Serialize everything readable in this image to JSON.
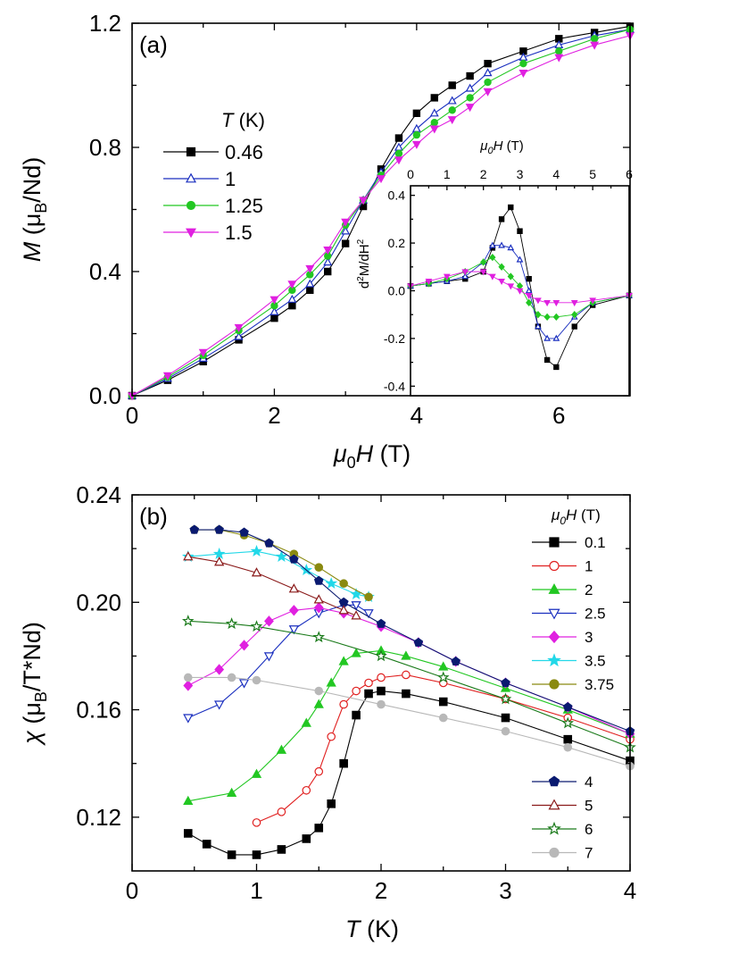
{
  "chart_data": [
    {
      "id": "a",
      "type": "line",
      "panel_label": "(a)",
      "xlabel": {
        "prefix": "μ",
        "sub": "0",
        "var": "H",
        "unit": " (T)"
      },
      "ylabel": {
        "var": "M",
        "unit_pre": " (μ",
        "sub": "B",
        "unit_post": "/Nd)"
      },
      "xlim": [
        0,
        7
      ],
      "ylim": [
        0,
        1.2
      ],
      "xticks": [
        "0",
        "2",
        "4",
        "6"
      ],
      "yticks": [
        "0.0",
        "0.4",
        "0.8",
        "1.2"
      ],
      "legend_title": {
        "var": "T",
        "unit": " (K)"
      },
      "series": [
        {
          "name": "0.46",
          "color": "#000000",
          "marker": "square",
          "x": [
            0,
            0.5,
            1,
            1.5,
            2,
            2.25,
            2.5,
            2.75,
            3,
            3.25,
            3.5,
            3.75,
            4,
            4.25,
            4.5,
            4.75,
            5,
            5.5,
            6,
            6.5,
            7
          ],
          "y": [
            0,
            0.05,
            0.11,
            0.18,
            0.25,
            0.29,
            0.34,
            0.4,
            0.49,
            0.61,
            0.73,
            0.83,
            0.91,
            0.96,
            1.0,
            1.03,
            1.07,
            1.11,
            1.15,
            1.17,
            1.19
          ]
        },
        {
          "name": "1",
          "color": "#1a2fbf",
          "marker": "triangle-open",
          "x": [
            0,
            0.5,
            1,
            1.5,
            2,
            2.25,
            2.5,
            2.75,
            3,
            3.25,
            3.5,
            3.75,
            4,
            4.25,
            4.5,
            4.75,
            5,
            5.5,
            6,
            6.5,
            7
          ],
          "y": [
            0,
            0.055,
            0.12,
            0.19,
            0.27,
            0.31,
            0.36,
            0.43,
            0.53,
            0.63,
            0.72,
            0.8,
            0.86,
            0.91,
            0.95,
            0.99,
            1.04,
            1.09,
            1.13,
            1.16,
            1.18
          ]
        },
        {
          "name": "1.25",
          "color": "#22c722",
          "marker": "circle",
          "x": [
            0,
            0.5,
            1,
            1.5,
            2,
            2.25,
            2.5,
            2.75,
            3,
            3.25,
            3.5,
            3.75,
            4,
            4.25,
            4.5,
            4.75,
            5,
            5.5,
            6,
            6.5,
            7
          ],
          "y": [
            0,
            0.06,
            0.13,
            0.21,
            0.29,
            0.34,
            0.39,
            0.45,
            0.55,
            0.63,
            0.71,
            0.78,
            0.84,
            0.88,
            0.92,
            0.96,
            1.01,
            1.07,
            1.11,
            1.15,
            1.18
          ]
        },
        {
          "name": "1.5",
          "color": "#e020e0",
          "marker": "triangle-down",
          "x": [
            0,
            0.5,
            1,
            1.5,
            2,
            2.25,
            2.5,
            2.75,
            3,
            3.25,
            3.5,
            3.75,
            4,
            4.25,
            4.5,
            4.75,
            5,
            5.5,
            6,
            6.5,
            7
          ],
          "y": [
            0,
            0.065,
            0.14,
            0.22,
            0.31,
            0.36,
            0.41,
            0.47,
            0.56,
            0.63,
            0.7,
            0.76,
            0.81,
            0.86,
            0.89,
            0.93,
            0.98,
            1.04,
            1.09,
            1.13,
            1.16
          ]
        }
      ]
    },
    {
      "id": "a-inset",
      "type": "line",
      "xlabel": {
        "prefix": "μ",
        "sub": "0",
        "var": "H",
        "unit": " (T)"
      },
      "ylabel": {
        "text": "d",
        "sup1": "2",
        "mid": "M/dH",
        "sup2": "2"
      },
      "xlim": [
        0,
        6
      ],
      "ylim": [
        -0.44,
        0.44
      ],
      "xticks": [
        "0",
        "1",
        "2",
        "3",
        "4",
        "5",
        "6"
      ],
      "yticks": [
        "-0.4",
        "-0.2",
        "0.0",
        "0.2",
        "0.4"
      ],
      "series": [
        {
          "name": "0.46",
          "color": "#000000",
          "marker": "square",
          "x": [
            0,
            0.5,
            1,
            1.5,
            2,
            2.25,
            2.5,
            2.75,
            3,
            3.25,
            3.5,
            3.75,
            4,
            4.5,
            5,
            6
          ],
          "y": [
            0.02,
            0.03,
            0.04,
            0.05,
            0.08,
            0.18,
            0.3,
            0.35,
            0.25,
            0.05,
            -0.15,
            -0.29,
            -0.32,
            -0.15,
            -0.06,
            -0.02
          ]
        },
        {
          "name": "1",
          "color": "#1a2fbf",
          "marker": "triangle-open",
          "x": [
            0,
            0.5,
            1,
            1.5,
            2,
            2.25,
            2.5,
            2.75,
            3,
            3.25,
            3.5,
            3.75,
            4,
            4.5,
            5,
            6
          ],
          "y": [
            0.02,
            0.03,
            0.04,
            0.06,
            0.12,
            0.19,
            0.19,
            0.18,
            0.13,
            0.0,
            -0.15,
            -0.2,
            -0.2,
            -0.11,
            -0.05,
            -0.02
          ]
        },
        {
          "name": "1.25",
          "color": "#22c722",
          "marker": "diamond",
          "x": [
            0,
            0.5,
            1,
            1.5,
            2,
            2.25,
            2.5,
            2.75,
            3,
            3.25,
            3.5,
            3.75,
            4,
            4.5,
            5,
            6
          ],
          "y": [
            0.02,
            0.03,
            0.05,
            0.08,
            0.12,
            0.14,
            0.1,
            0.06,
            0.02,
            -0.05,
            -0.1,
            -0.11,
            -0.11,
            -0.1,
            -0.05,
            -0.02
          ]
        },
        {
          "name": "1.5",
          "color": "#e020e0",
          "marker": "triangle-down",
          "x": [
            0,
            0.5,
            1,
            1.5,
            2,
            2.25,
            2.5,
            2.75,
            3,
            3.25,
            3.5,
            3.75,
            4,
            4.5,
            5,
            6
          ],
          "y": [
            0.02,
            0.04,
            0.06,
            0.08,
            0.08,
            0.06,
            0.04,
            0.02,
            0.0,
            -0.02,
            -0.04,
            -0.05,
            -0.05,
            -0.05,
            -0.04,
            -0.02
          ]
        }
      ]
    },
    {
      "id": "b",
      "type": "line",
      "panel_label": "(b)",
      "xlabel": {
        "var": "T",
        "unit": " (K)"
      },
      "ylabel": {
        "var": "χ",
        "unit_pre": " (μ",
        "sub": "B",
        "unit_post": "/T*Nd)"
      },
      "xlim": [
        0,
        4
      ],
      "ylim": [
        0.1,
        0.24
      ],
      "xticks": [
        "0",
        "1",
        "2",
        "3",
        "4"
      ],
      "yticks": [
        "0.12",
        "0.16",
        "0.20",
        "0.24"
      ],
      "legend_title": {
        "prefix": "μ",
        "sub": "0",
        "var": "H",
        "unit": " (T)"
      },
      "series": [
        {
          "name": "0.1",
          "color": "#000000",
          "marker": "square",
          "group": 1,
          "x": [
            0.45,
            0.6,
            0.8,
            1.0,
            1.2,
            1.4,
            1.5,
            1.6,
            1.7,
            1.8,
            1.9,
            2.0,
            2.2,
            2.5,
            3.0,
            3.5,
            4.0
          ],
          "y": [
            0.114,
            0.11,
            0.106,
            0.106,
            0.108,
            0.112,
            0.116,
            0.125,
            0.14,
            0.158,
            0.166,
            0.167,
            0.166,
            0.163,
            0.157,
            0.149,
            0.141
          ]
        },
        {
          "name": "1",
          "color": "#e02020",
          "marker": "circle-open",
          "group": 1,
          "x": [
            1.0,
            1.2,
            1.4,
            1.5,
            1.6,
            1.7,
            1.8,
            1.9,
            2.0,
            2.2,
            2.5,
            3.0,
            3.5,
            4.0
          ],
          "y": [
            0.118,
            0.122,
            0.13,
            0.137,
            0.15,
            0.162,
            0.167,
            0.17,
            0.172,
            0.173,
            0.17,
            0.164,
            0.157,
            0.149
          ]
        },
        {
          "name": "2",
          "color": "#22c722",
          "marker": "triangle",
          "group": 1,
          "x": [
            0.45,
            0.8,
            1.0,
            1.2,
            1.4,
            1.5,
            1.6,
            1.7,
            1.8,
            2.0,
            2.2,
            2.5,
            3.0,
            3.5,
            4.0
          ],
          "y": [
            0.126,
            0.129,
            0.136,
            0.145,
            0.155,
            0.162,
            0.17,
            0.178,
            0.181,
            0.182,
            0.18,
            0.176,
            0.168,
            0.16,
            0.151
          ]
        },
        {
          "name": "2.5",
          "color": "#1a2fbf",
          "marker": "triangle-down-open",
          "group": 1,
          "x": [
            0.45,
            0.7,
            0.9,
            1.1,
            1.3,
            1.5,
            1.7,
            1.8,
            1.9
          ],
          "y": [
            0.157,
            0.162,
            0.17,
            0.18,
            0.19,
            0.196,
            0.199,
            0.199,
            0.196
          ]
        },
        {
          "name": "3",
          "color": "#e020e0",
          "marker": "diamond",
          "group": 1,
          "x": [
            0.45,
            0.7,
            0.9,
            1.1,
            1.3,
            1.5,
            1.7,
            2.0,
            2.3,
            2.6,
            3.0,
            3.5,
            4.0
          ],
          "y": [
            0.169,
            0.175,
            0.184,
            0.193,
            0.197,
            0.198,
            0.196,
            0.191,
            0.185,
            0.178,
            0.17,
            0.161,
            0.151
          ]
        },
        {
          "name": "3.5",
          "color": "#22d8e8",
          "marker": "star",
          "group": 1,
          "x": [
            0.45,
            0.7,
            1.0,
            1.2,
            1.4,
            1.6,
            1.8,
            1.9
          ],
          "y": [
            0.217,
            0.218,
            0.219,
            0.217,
            0.212,
            0.207,
            0.203,
            0.202
          ]
        },
        {
          "name": "3.75",
          "color": "#8a8a10",
          "marker": "circle",
          "group": 1,
          "x": [
            0.5,
            0.7,
            0.9,
            1.1,
            1.3,
            1.5,
            1.7,
            1.9
          ],
          "y": [
            0.227,
            0.227,
            0.225,
            0.222,
            0.218,
            0.213,
            0.207,
            0.202
          ]
        },
        {
          "name": "4",
          "color": "#0a1a70",
          "marker": "pentagon",
          "group": 2,
          "x": [
            0.5,
            0.7,
            0.9,
            1.1,
            1.3,
            1.5,
            1.7,
            2.0,
            2.3,
            2.6,
            3.0,
            3.5,
            4.0
          ],
          "y": [
            0.227,
            0.227,
            0.226,
            0.222,
            0.216,
            0.208,
            0.2,
            0.192,
            0.185,
            0.178,
            0.17,
            0.161,
            0.152
          ]
        },
        {
          "name": "5",
          "color": "#8a1a1a",
          "marker": "triangle-open",
          "group": 2,
          "x": [
            0.45,
            0.7,
            1.0,
            1.3,
            1.5,
            1.7,
            1.8
          ],
          "y": [
            0.217,
            0.215,
            0.211,
            0.205,
            0.201,
            0.197,
            0.195
          ]
        },
        {
          "name": "6",
          "color": "#1a7a1a",
          "marker": "star-open",
          "group": 2,
          "x": [
            0.45,
            0.8,
            1.0,
            1.5,
            2.0,
            2.5,
            3.0,
            3.5,
            4.0
          ],
          "y": [
            0.193,
            0.192,
            0.191,
            0.187,
            0.18,
            0.172,
            0.164,
            0.155,
            0.146
          ]
        },
        {
          "name": "7",
          "color": "#b8b8b8",
          "marker": "circle",
          "group": 2,
          "x": [
            0.45,
            0.8,
            1.0,
            1.5,
            2.0,
            2.5,
            3.0,
            3.5,
            4.0
          ],
          "y": [
            0.172,
            0.172,
            0.171,
            0.167,
            0.162,
            0.157,
            0.152,
            0.146,
            0.139
          ]
        }
      ]
    }
  ]
}
